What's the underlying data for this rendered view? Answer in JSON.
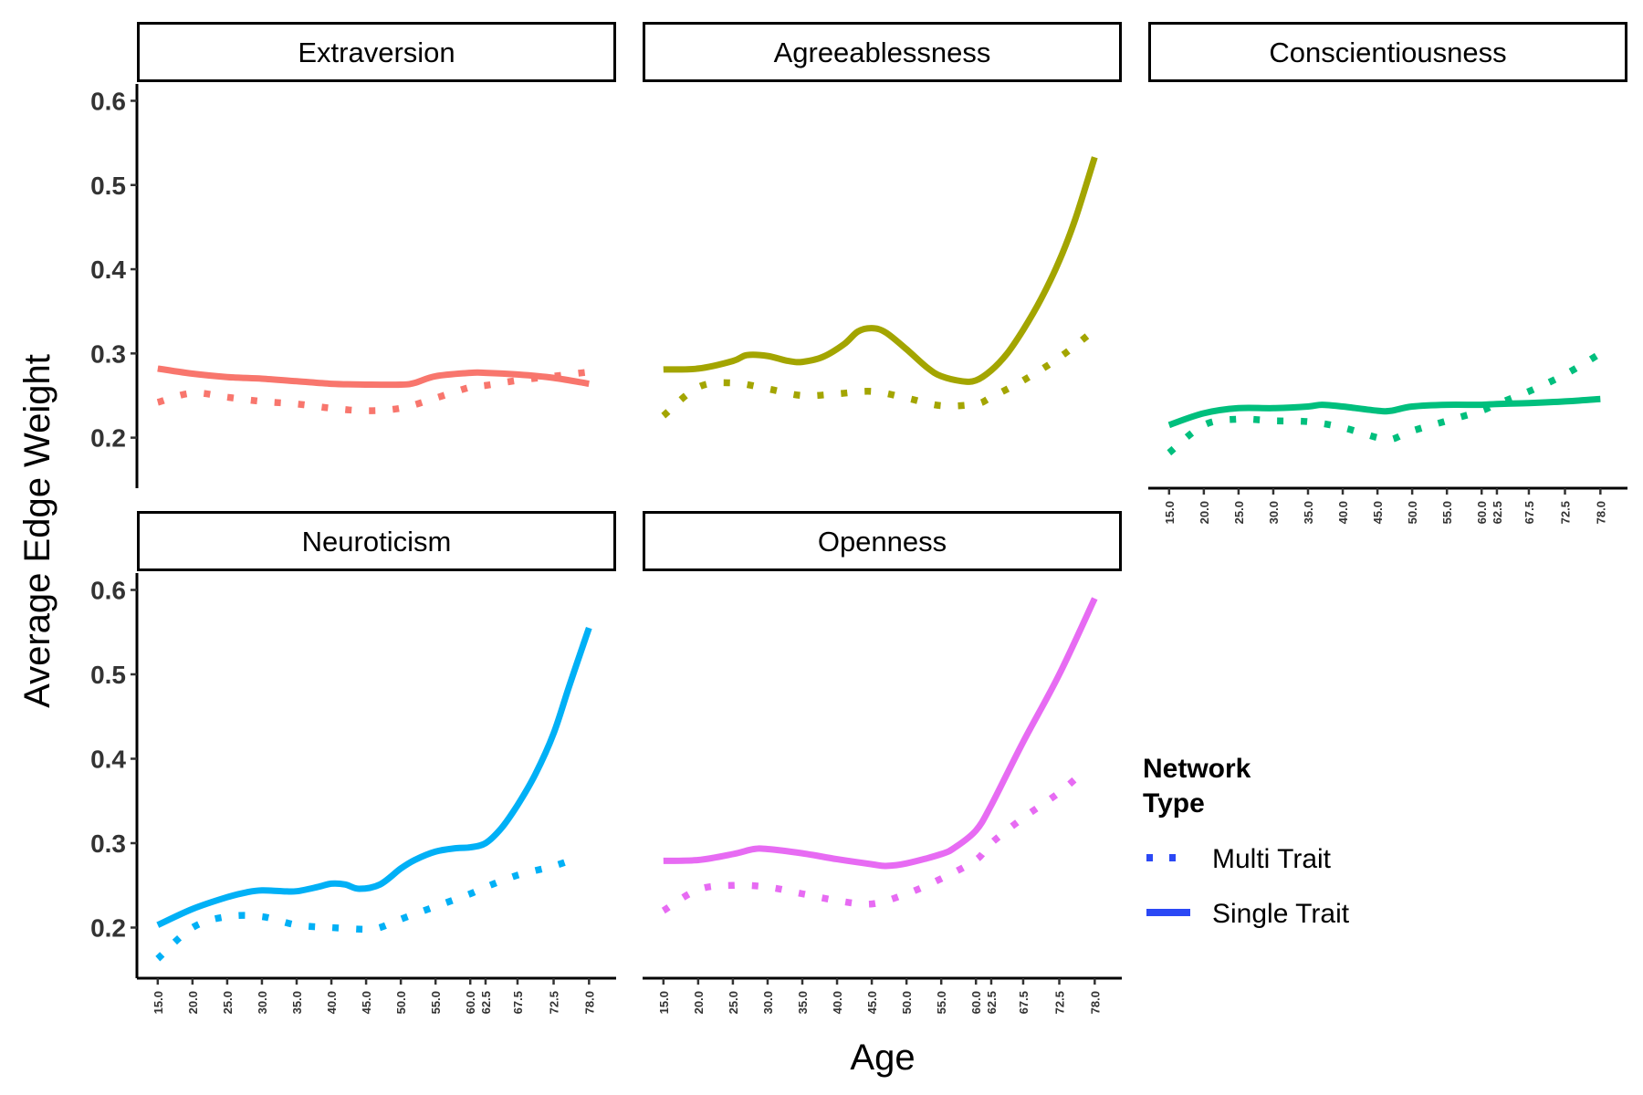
{
  "chart_data": {
    "type": "line",
    "xlabel": "Age",
    "ylabel": "Average Edge Weight",
    "ylim": [
      0.14,
      0.62
    ],
    "y_ticks": [
      "0.2",
      "0.3",
      "0.4",
      "0.5",
      "0.6"
    ],
    "x_ticks": [
      "15.0",
      "20.0",
      "25.0",
      "30.0",
      "35.0",
      "40.0",
      "45.0",
      "50.0",
      "55.0",
      "60.0",
      "62.5",
      "67.5",
      "72.5",
      "78.0"
    ],
    "x_tick_values": [
      15,
      20,
      25,
      30,
      35,
      40,
      45,
      50,
      55,
      60,
      62.5,
      67.5,
      72.5,
      78
    ],
    "legend": {
      "title_line1": "Network",
      "title_line2": "Type",
      "placement": "right",
      "items": [
        {
          "label": "Multi Trait",
          "style": "dotted"
        },
        {
          "label": "Single Trait",
          "style": "solid"
        }
      ]
    },
    "panels": [
      {
        "title": "Extraversion",
        "color": "#F8766D",
        "series": [
          {
            "name": "Single Trait",
            "x": [
              15,
              20,
              25,
              30,
              35,
              40,
              45,
              50,
              52,
              55,
              60,
              62.5,
              67.5,
              72.5,
              78
            ],
            "y": [
              0.282,
              0.276,
              0.272,
              0.27,
              0.267,
              0.264,
              0.263,
              0.263,
              0.265,
              0.273,
              0.277,
              0.277,
              0.275,
              0.271,
              0.264
            ]
          },
          {
            "name": "Multi Trait",
            "x": [
              15,
              20,
              25,
              30,
              35,
              40,
              45,
              50,
              55,
              60,
              62.5,
              67.5,
              72.5,
              78
            ],
            "y": [
              0.242,
              0.253,
              0.248,
              0.243,
              0.24,
              0.235,
              0.232,
              0.235,
              0.247,
              0.26,
              0.262,
              0.268,
              0.273,
              0.278
            ]
          }
        ]
      },
      {
        "title": "Agreeablessness",
        "color": "#A3A500",
        "series": [
          {
            "name": "Single Trait",
            "x": [
              15,
              20,
              25,
              27,
              30,
              33,
              35,
              38,
              41,
              43,
              45,
              47,
              50,
              53,
              55,
              58,
              60,
              62.5,
              65,
              67.5,
              70,
              72.5,
              75,
              78
            ],
            "y": [
              0.281,
              0.282,
              0.291,
              0.298,
              0.297,
              0.291,
              0.29,
              0.296,
              0.311,
              0.326,
              0.33,
              0.325,
              0.305,
              0.283,
              0.273,
              0.267,
              0.268,
              0.28,
              0.3,
              0.328,
              0.365,
              0.41,
              0.46,
              0.533
            ]
          },
          {
            "name": "Multi Trait",
            "x": [
              15,
              20,
              25,
              30,
              35,
              40,
              45,
              50,
              55,
              60,
              62.5,
              67.5,
              72.5,
              78
            ],
            "y": [
              0.226,
              0.26,
              0.265,
              0.258,
              0.25,
              0.252,
              0.255,
              0.247,
              0.238,
              0.24,
              0.248,
              0.268,
              0.295,
              0.328
            ]
          }
        ]
      },
      {
        "title": "Conscientiousness",
        "color": "#00BF7D",
        "series": [
          {
            "name": "Single Trait",
            "x": [
              15,
              20,
              25,
              30,
              35,
              37,
              40,
              45,
              47,
              50,
              55,
              60,
              62.5,
              67.5,
              72.5,
              78
            ],
            "y": [
              0.215,
              0.229,
              0.235,
              0.235,
              0.237,
              0.239,
              0.237,
              0.232,
              0.232,
              0.237,
              0.239,
              0.239,
              0.24,
              0.241,
              0.243,
              0.246
            ]
          },
          {
            "name": "Multi Trait",
            "x": [
              15,
              20,
              25,
              30,
              35,
              40,
              45,
              47,
              50,
              55,
              60,
              62.5,
              67.5,
              72.5,
              78
            ],
            "y": [
              0.182,
              0.215,
              0.222,
              0.22,
              0.219,
              0.212,
              0.2,
              0.198,
              0.208,
              0.22,
              0.232,
              0.24,
              0.255,
              0.275,
              0.3
            ]
          }
        ]
      },
      {
        "title": "Neuroticism",
        "color": "#00B0F6",
        "series": [
          {
            "name": "Single Trait",
            "x": [
              15,
              20,
              25,
              28,
              30,
              33,
              35,
              38,
              40,
              42,
              44,
              47,
              50,
              52,
              55,
              58,
              60,
              62.5,
              65,
              67.5,
              70,
              72.5,
              75,
              78
            ],
            "y": [
              0.203,
              0.222,
              0.236,
              0.242,
              0.244,
              0.243,
              0.243,
              0.248,
              0.252,
              0.251,
              0.246,
              0.251,
              0.27,
              0.28,
              0.29,
              0.294,
              0.295,
              0.3,
              0.318,
              0.345,
              0.382,
              0.43,
              0.488,
              0.555
            ]
          },
          {
            "name": "Multi Trait",
            "x": [
              15,
              20,
              25,
              30,
              35,
              40,
              45,
              47,
              50,
              55,
              60,
              62.5,
              67.5,
              72.5,
              76
            ],
            "y": [
              0.163,
              0.2,
              0.213,
              0.213,
              0.203,
              0.2,
              0.198,
              0.2,
              0.21,
              0.225,
              0.24,
              0.248,
              0.262,
              0.273,
              0.282
            ]
          }
        ]
      },
      {
        "title": "Openness",
        "color": "#E76BF3",
        "series": [
          {
            "name": "Single Trait",
            "x": [
              15,
              20,
              25,
              28,
              30,
              35,
              40,
              45,
              47,
              50,
              55,
              57,
              60,
              62.5,
              67.5,
              72.5,
              78
            ],
            "y": [
              0.279,
              0.28,
              0.287,
              0.293,
              0.293,
              0.288,
              0.281,
              0.275,
              0.273,
              0.276,
              0.287,
              0.295,
              0.315,
              0.345,
              0.42,
              0.5,
              0.59
            ]
          },
          {
            "name": "Multi Trait",
            "x": [
              15,
              20,
              25,
              30,
              35,
              40,
              45,
              50,
              55,
              60,
              62.5,
              67.5,
              72.5,
              76
            ],
            "y": [
              0.22,
              0.245,
              0.25,
              0.248,
              0.24,
              0.232,
              0.228,
              0.24,
              0.258,
              0.28,
              0.3,
              0.33,
              0.36,
              0.383
            ]
          }
        ]
      }
    ]
  }
}
